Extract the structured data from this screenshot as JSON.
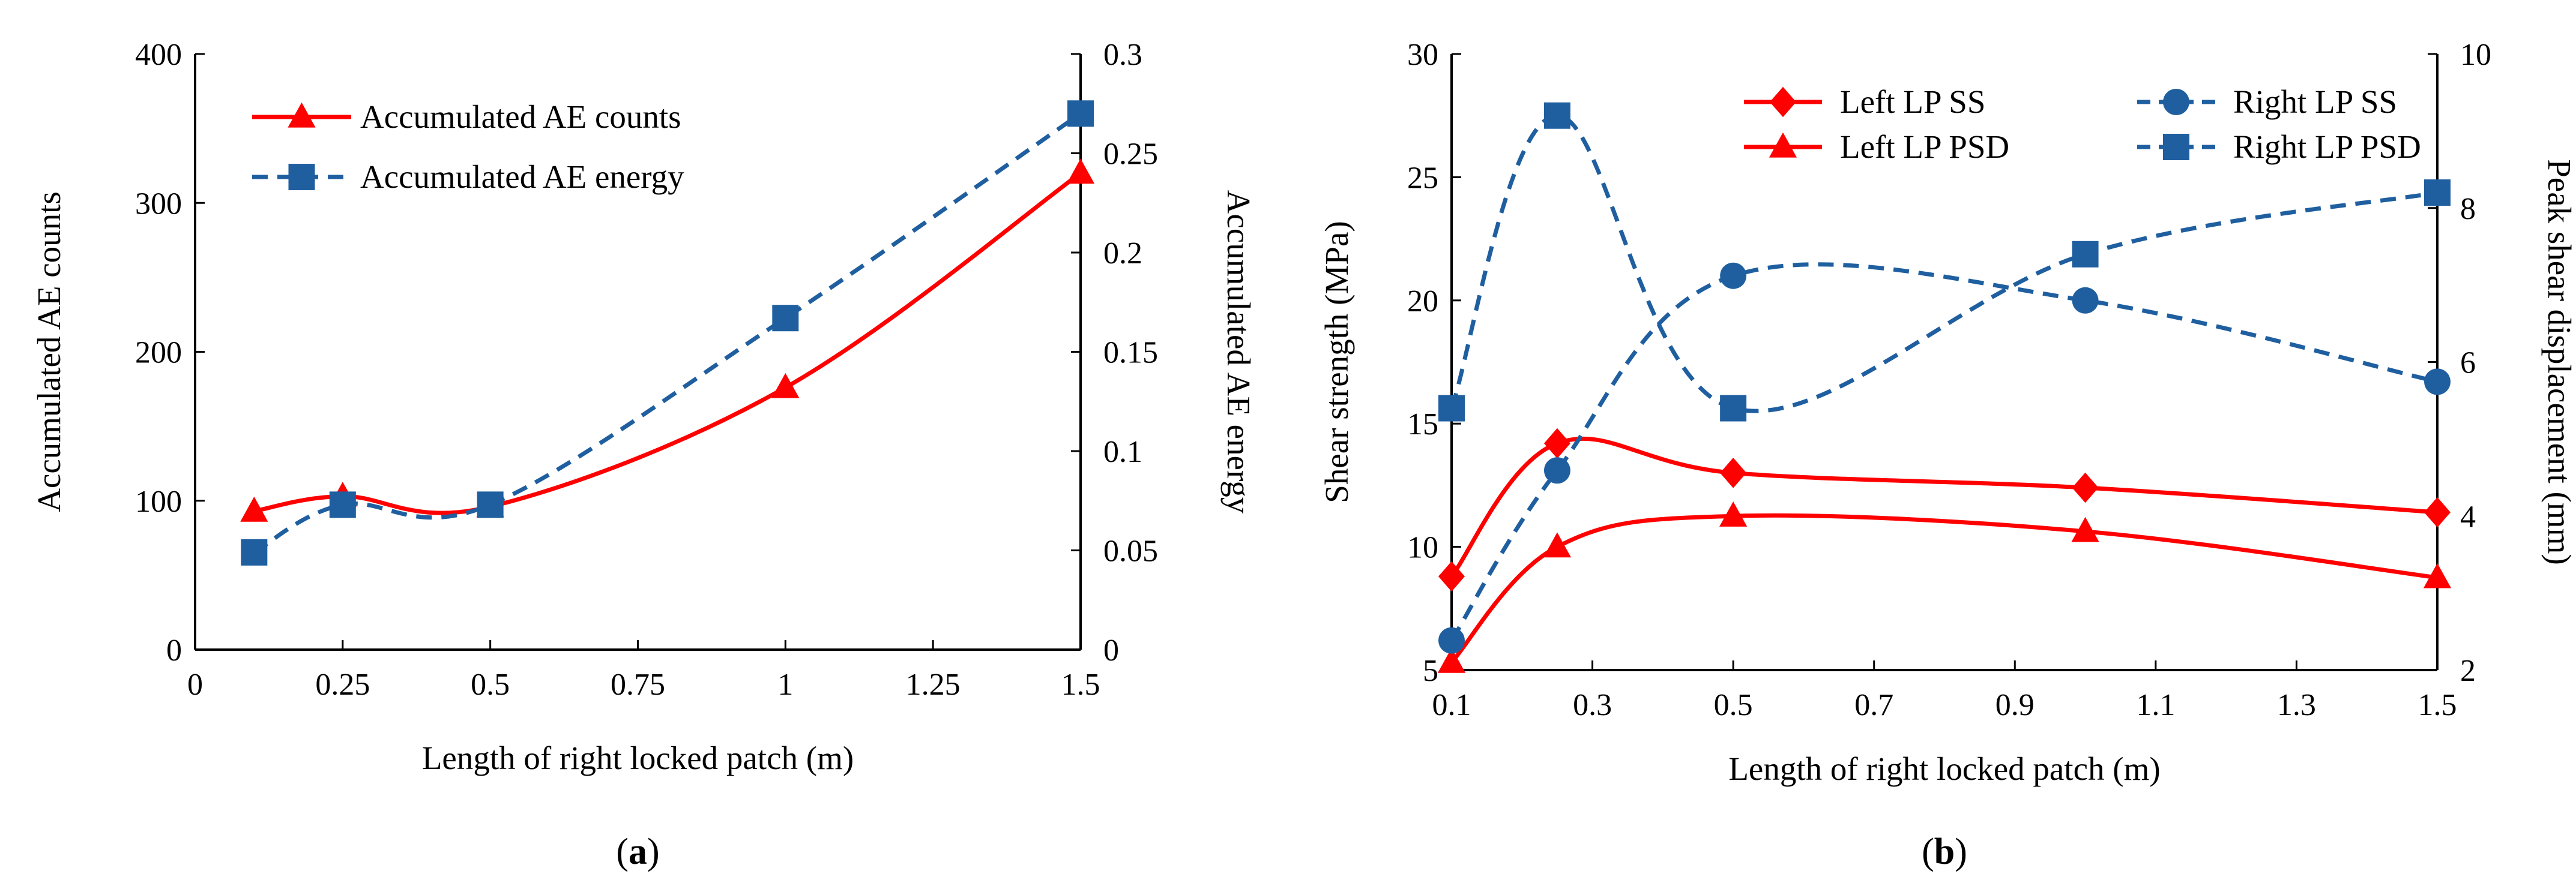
{
  "colors": {
    "red": "#ff0000",
    "blue": "#1f5fa0",
    "axis": "#000000"
  },
  "chart_data": [
    {
      "id": "a",
      "type": "line",
      "panel_label": "a",
      "xlabel": "Length of right locked patch (m)",
      "ylabel_left": "Accumulated AE counts",
      "ylabel_right": "Accumulated AE energy",
      "xlim": [
        0,
        1.5
      ],
      "ylim_left": [
        0,
        400
      ],
      "ylim_right": [
        0,
        0.3
      ],
      "x_ticks": [
        0,
        0.25,
        0.5,
        0.75,
        1,
        1.25,
        1.5
      ],
      "x_tick_labels": [
        "0",
        "0.25",
        "0.5",
        "0.75",
        "1",
        "1.25",
        "1.5"
      ],
      "y_left_ticks": [
        0,
        100,
        200,
        300,
        400
      ],
      "y_left_tick_labels": [
        "0",
        "100",
        "200",
        "300",
        "400"
      ],
      "y_right_ticks": [
        0,
        0.05,
        0.1,
        0.15,
        0.2,
        0.25,
        0.3
      ],
      "y_right_tick_labels": [
        "0",
        "0.05",
        "0.1",
        "0.15",
        "0.2",
        "0.25",
        "0.3"
      ],
      "legend_position": "top-left",
      "series": [
        {
          "name": "Accumulated AE counts",
          "axis": "left",
          "color": "red",
          "dash": "solid",
          "marker": "triangle",
          "x": [
            0.1,
            0.25,
            0.5,
            1,
            1.5
          ],
          "values": [
            93,
            103,
            96,
            176,
            320
          ]
        },
        {
          "name": "Accumulated AE energy",
          "axis": "right",
          "color": "blue",
          "dash": "dashed",
          "marker": "square",
          "x": [
            0.1,
            0.25,
            0.5,
            1,
            1.5
          ],
          "values": [
            0.049,
            0.073,
            0.073,
            0.167,
            0.27
          ]
        }
      ]
    },
    {
      "id": "b",
      "type": "line",
      "panel_label": "b",
      "xlabel": "Length of right locked patch (m)",
      "ylabel_left": "Shear strength (MPa)",
      "ylabel_right": "Peak shear displacement (mm)",
      "xlim": [
        0.1,
        1.5
      ],
      "ylim_left": [
        5,
        30
      ],
      "ylim_right": [
        2,
        10
      ],
      "x_ticks": [
        0.1,
        0.3,
        0.5,
        0.7,
        0.9,
        1.1,
        1.3,
        1.5
      ],
      "x_tick_labels": [
        "0.1",
        "0.3",
        "0.5",
        "0.7",
        "0.9",
        "1.1",
        "1.3",
        "1.5"
      ],
      "y_left_ticks": [
        5,
        10,
        15,
        20,
        25,
        30
      ],
      "y_left_tick_labels": [
        "5",
        "10",
        "15",
        "20",
        "25",
        "30"
      ],
      "y_right_ticks": [
        2,
        4,
        6,
        8,
        10
      ],
      "y_right_tick_labels": [
        "2",
        "4",
        "6",
        "8",
        "10"
      ],
      "legend_position": "top",
      "series": [
        {
          "name": "Left LP SS",
          "axis": "left",
          "color": "red",
          "dash": "solid",
          "marker": "diamond",
          "x": [
            0.1,
            0.25,
            0.5,
            1,
            1.5
          ],
          "values": [
            8.8,
            14.2,
            13.0,
            12.4,
            11.4
          ]
        },
        {
          "name": "Left LP PSD",
          "axis": "right",
          "color": "red",
          "dash": "solid",
          "marker": "triangle",
          "x": [
            0.1,
            0.25,
            0.5,
            1,
            1.5
          ],
          "values": [
            2.1,
            3.6,
            4.0,
            3.8,
            3.2
          ]
        },
        {
          "name": "Right LP SS",
          "axis": "left",
          "color": "blue",
          "dash": "dashed",
          "marker": "circle",
          "x": [
            0.1,
            0.25,
            0.5,
            1,
            1.5
          ],
          "values": [
            6.2,
            13.1,
            21.0,
            20.0,
            16.7
          ]
        },
        {
          "name": "Right LP PSD",
          "axis": "right",
          "color": "blue",
          "dash": "dashed",
          "marker": "square",
          "x": [
            0.1,
            0.25,
            0.5,
            1,
            1.5
          ],
          "values": [
            5.4,
            9.2,
            5.4,
            7.4,
            8.2
          ]
        }
      ]
    }
  ]
}
